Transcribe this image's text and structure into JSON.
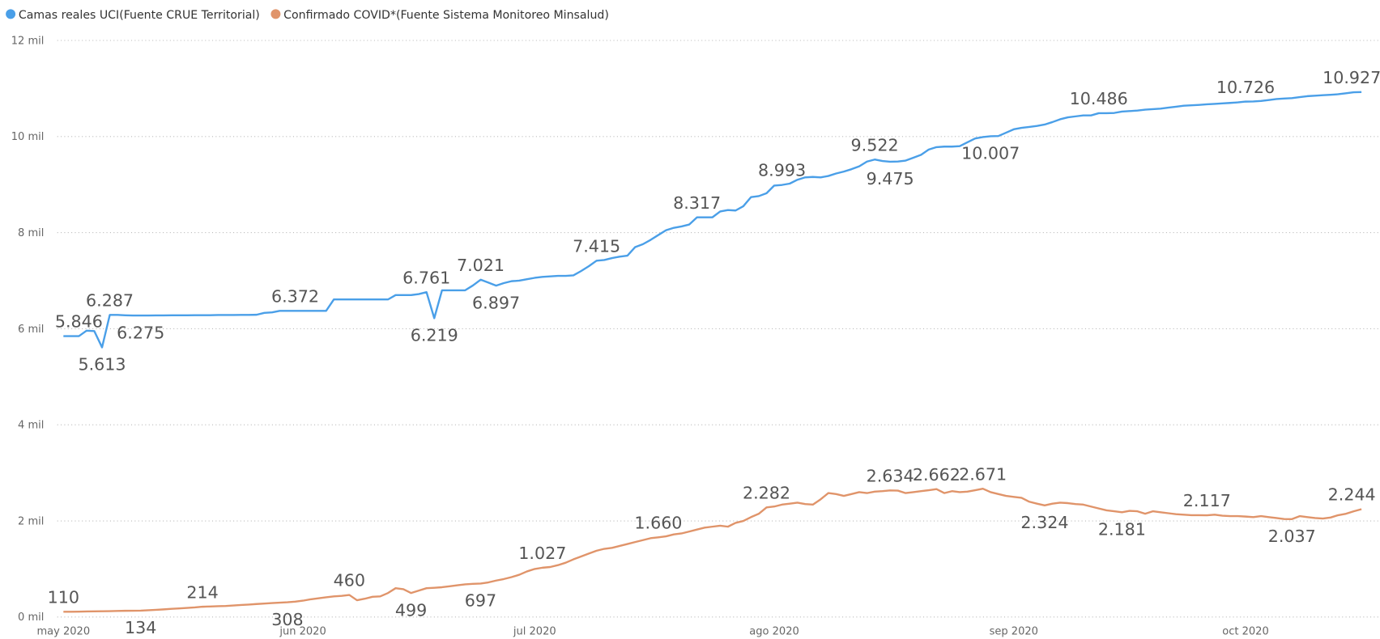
{
  "chart_data": {
    "type": "line",
    "categories": [
      "may 2020",
      null,
      null,
      null,
      null,
      null,
      null,
      null,
      null,
      null,
      null,
      null,
      null,
      null,
      null,
      null,
      null,
      null,
      null,
      null,
      null,
      null,
      null,
      null,
      null,
      null,
      null,
      null,
      null,
      null,
      null,
      "jun 2020",
      null,
      null,
      null,
      null,
      null,
      null,
      null,
      null,
      null,
      null,
      null,
      null,
      null,
      null,
      null,
      null,
      null,
      null,
      null,
      null,
      null,
      null,
      null,
      null,
      null,
      null,
      null,
      null,
      null,
      "jul 2020",
      null,
      null,
      null,
      null,
      null,
      null,
      null,
      null,
      null,
      null,
      null,
      null,
      null,
      null,
      null,
      null,
      null,
      null,
      null,
      null,
      null,
      null,
      null,
      null,
      null,
      null,
      null,
      null,
      null,
      null,
      "ago 2020",
      null,
      null,
      null,
      null,
      null,
      null,
      null,
      null,
      null,
      null,
      null,
      null,
      null,
      null,
      null,
      null,
      null,
      null,
      null,
      null,
      null,
      null,
      null,
      null,
      null,
      null,
      null,
      null,
      null,
      null,
      "sep 2020",
      null,
      null,
      null,
      null,
      null,
      null,
      null,
      null,
      null,
      null,
      null,
      null,
      null,
      null,
      null,
      null,
      null,
      null,
      null,
      null,
      null,
      null,
      null,
      null,
      null,
      null,
      null,
      null,
      null,
      "oct 2020",
      null,
      null,
      null,
      null,
      null,
      null,
      null,
      null,
      null,
      null,
      null,
      null,
      null,
      null,
      null
    ],
    "series": [
      {
        "name": "Camas reales UCI(Fuente CRUE Territorial)",
        "color": "#4a9fe8",
        "values": [
          5846,
          5846,
          5846,
          5960,
          5950,
          5613,
          6287,
          6287,
          6280,
          6275,
          6275,
          6275,
          6278,
          6278,
          6280,
          6280,
          6280,
          6282,
          6282,
          6282,
          6285,
          6285,
          6285,
          6288,
          6288,
          6290,
          6330,
          6340,
          6372,
          6372,
          6372,
          6372,
          6372,
          6372,
          6372,
          6610,
          6610,
          6610,
          6610,
          6610,
          6610,
          6610,
          6610,
          6700,
          6700,
          6700,
          6720,
          6761,
          6219,
          6800,
          6800,
          6800,
          6800,
          6900,
          7021,
          6960,
          6897,
          6950,
          6990,
          7000,
          7030,
          7060,
          7080,
          7090,
          7100,
          7100,
          7110,
          7200,
          7300,
          7415,
          7430,
          7470,
          7500,
          7520,
          7700,
          7760,
          7850,
          7950,
          8050,
          8100,
          8130,
          8170,
          8317,
          8317,
          8320,
          8440,
          8470,
          8460,
          8550,
          8740,
          8760,
          8820,
          8980,
          8993,
          9020,
          9100,
          9150,
          9160,
          9150,
          9180,
          9230,
          9270,
          9320,
          9380,
          9480,
          9522,
          9490,
          9475,
          9480,
          9500,
          9560,
          9620,
          9730,
          9780,
          9790,
          9790,
          9800,
          9880,
          9960,
          9990,
          10007,
          10010,
          10080,
          10150,
          10180,
          10200,
          10220,
          10250,
          10300,
          10360,
          10400,
          10420,
          10440,
          10440,
          10486,
          10486,
          10490,
          10520,
          10530,
          10540,
          10560,
          10570,
          10580,
          10600,
          10620,
          10640,
          10650,
          10660,
          10670,
          10680,
          10690,
          10700,
          10710,
          10726,
          10730,
          10740,
          10760,
          10780,
          10790,
          10800,
          10820,
          10840,
          10850,
          10860,
          10870,
          10880,
          10900,
          10920,
          10927
        ],
        "value_labels": [
          null,
          null,
          "5.846",
          null,
          null,
          "5.613",
          "6.287",
          null,
          null,
          null,
          "6.275",
          null,
          null,
          null,
          null,
          null,
          null,
          null,
          null,
          null,
          null,
          null,
          null,
          null,
          null,
          null,
          null,
          null,
          null,
          null,
          "6.372",
          null,
          null,
          null,
          null,
          null,
          null,
          null,
          null,
          null,
          null,
          null,
          null,
          null,
          null,
          null,
          null,
          "6.761",
          "6.219",
          null,
          null,
          null,
          null,
          null,
          "7.021",
          null,
          "6.897",
          null,
          null,
          null,
          null,
          null,
          null,
          null,
          null,
          null,
          null,
          null,
          null,
          "7.415",
          null,
          null,
          null,
          null,
          null,
          null,
          null,
          null,
          null,
          null,
          null,
          null,
          "8.317",
          null,
          null,
          null,
          null,
          null,
          null,
          null,
          null,
          null,
          null,
          "8.993",
          null,
          null,
          null,
          null,
          null,
          null,
          null,
          null,
          null,
          null,
          null,
          "9.522",
          null,
          "9.475",
          null,
          null,
          null,
          null,
          null,
          null,
          null,
          null,
          null,
          null,
          null,
          null,
          "10.007",
          null,
          null,
          null,
          null,
          null,
          null,
          null,
          null,
          null,
          null,
          null,
          null,
          null,
          "10.486",
          null,
          null,
          null,
          null,
          null,
          null,
          null,
          null,
          null,
          null,
          null,
          null,
          null,
          null,
          null,
          null,
          null,
          null,
          "10.726",
          null,
          null,
          null,
          null,
          null,
          null,
          null,
          null,
          null,
          null,
          null,
          null,
          null,
          null,
          "10.927"
        ]
      },
      {
        "name": "Confirmado COVID*(Fuente Sistema Monitoreo Minsalud)",
        "color": "#e0946a",
        "values": [
          110,
          110,
          112,
          115,
          118,
          120,
          123,
          126,
          129,
          131,
          134,
          140,
          150,
          160,
          170,
          180,
          190,
          200,
          214,
          220,
          225,
          230,
          240,
          250,
          260,
          270,
          280,
          290,
          300,
          308,
          320,
          340,
          370,
          390,
          410,
          430,
          440,
          460,
          350,
          380,
          420,
          430,
          500,
          600,
          580,
          499,
          550,
          600,
          610,
          620,
          640,
          660,
          680,
          690,
          697,
          720,
          760,
          790,
          830,
          880,
          950,
          1000,
          1027,
          1040,
          1080,
          1130,
          1200,
          1260,
          1320,
          1380,
          1420,
          1440,
          1480,
          1520,
          1560,
          1600,
          1640,
          1660,
          1680,
          1720,
          1740,
          1780,
          1820,
          1860,
          1880,
          1900,
          1880,
          1960,
          2000,
          2080,
          2150,
          2282,
          2300,
          2340,
          2360,
          2380,
          2350,
          2340,
          2450,
          2580,
          2560,
          2520,
          2560,
          2600,
          2580,
          2610,
          2620,
          2634,
          2630,
          2580,
          2600,
          2620,
          2640,
          2662,
          2580,
          2620,
          2600,
          2610,
          2640,
          2671,
          2600,
          2560,
          2520,
          2500,
          2480,
          2400,
          2360,
          2324,
          2360,
          2380,
          2370,
          2350,
          2340,
          2300,
          2260,
          2220,
          2200,
          2181,
          2210,
          2200,
          2150,
          2200,
          2180,
          2160,
          2140,
          2130,
          2120,
          2120,
          2117,
          2130,
          2110,
          2100,
          2100,
          2090,
          2080,
          2100,
          2080,
          2060,
          2040,
          2037,
          2100,
          2080,
          2060,
          2050,
          2070,
          2120,
          2150,
          2200,
          2244
        ],
        "value_labels": [
          "110",
          null,
          null,
          null,
          null,
          null,
          null,
          null,
          null,
          null,
          "134",
          null,
          null,
          null,
          null,
          null,
          null,
          null,
          "214",
          null,
          null,
          null,
          null,
          null,
          null,
          null,
          null,
          null,
          null,
          "308",
          null,
          null,
          null,
          null,
          null,
          null,
          null,
          "460",
          null,
          null,
          null,
          null,
          null,
          null,
          null,
          "499",
          null,
          null,
          null,
          null,
          null,
          null,
          null,
          null,
          "697",
          null,
          null,
          null,
          null,
          null,
          null,
          null,
          "1.027",
          null,
          null,
          null,
          null,
          null,
          null,
          null,
          null,
          null,
          null,
          null,
          null,
          null,
          null,
          "1.660",
          null,
          null,
          null,
          null,
          null,
          null,
          null,
          null,
          null,
          null,
          null,
          null,
          null,
          "2.282",
          null,
          null,
          null,
          null,
          null,
          null,
          null,
          null,
          null,
          null,
          null,
          null,
          null,
          null,
          null,
          "2.634",
          null,
          null,
          null,
          null,
          null,
          "2.662",
          null,
          null,
          null,
          null,
          null,
          "2.671",
          null,
          null,
          null,
          null,
          null,
          null,
          null,
          "2.324",
          null,
          null,
          null,
          null,
          null,
          null,
          null,
          null,
          null,
          "2.181",
          null,
          null,
          null,
          null,
          null,
          null,
          null,
          null,
          null,
          null,
          "2.117",
          null,
          null,
          null,
          null,
          null,
          null,
          null,
          null,
          null,
          null,
          "2.037",
          null,
          null,
          null,
          null,
          null,
          null,
          null,
          null,
          "2.244"
        ]
      }
    ],
    "ylim": [
      0,
      12000
    ],
    "yticks": [
      {
        "value": 0,
        "label": "0 mil"
      },
      {
        "value": 2000,
        "label": "2 mil"
      },
      {
        "value": 4000,
        "label": "4 mil"
      },
      {
        "value": 6000,
        "label": "6 mil"
      },
      {
        "value": 8000,
        "label": "8 mil"
      },
      {
        "value": 10000,
        "label": "10 mil"
      },
      {
        "value": 12000,
        "label": "12 mil"
      }
    ],
    "grid": true,
    "legend": "top-left"
  }
}
